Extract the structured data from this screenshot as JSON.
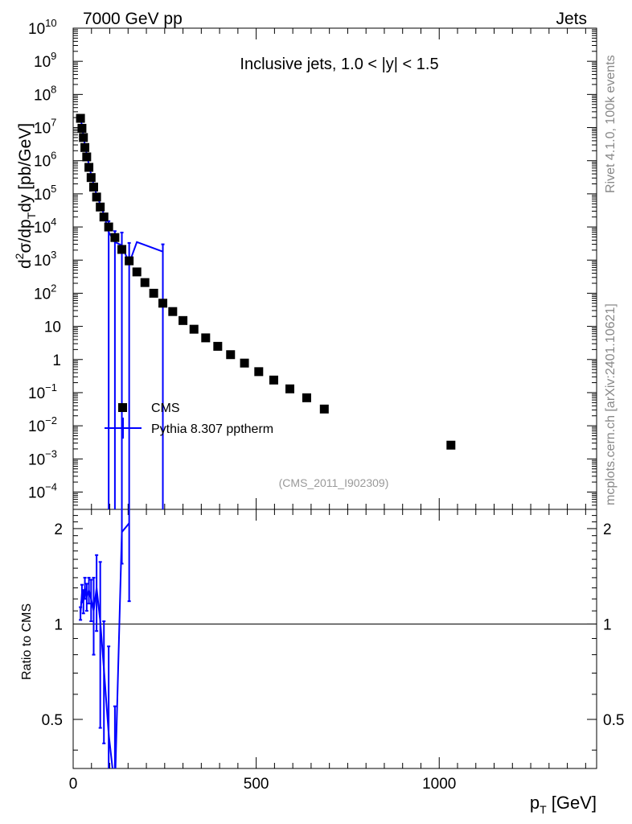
{
  "header": {
    "left": "7000 GeV pp",
    "right": "Jets"
  },
  "side": {
    "top": "Rivet 4.1.0,  100k events",
    "bottom": "mcplots.cern.ch [arXiv:2401.10621]"
  },
  "chart_data": [
    {
      "type": "scatter",
      "title": "Inclusive jets, 1.0 < |y| < 1.5",
      "ylabel": "d²σ/dp_T dy [pb/GeV]",
      "ylabel_parts": {
        "main": "d",
        "sup2": "2",
        "mid": "σ/dp",
        "sub": "T",
        "end": "dy [pb/GeV]"
      },
      "analysis": "(CMS_2011_I902309)",
      "xlim": [
        0,
        1430
      ],
      "ylim": [
        3e-05,
        10000000000
      ],
      "log_y": true,
      "legend_position": "lower-left",
      "y_ticks": [
        {
          "v": 10000000000.0,
          "m": "10",
          "e": "10"
        },
        {
          "v": 1000000000.0,
          "m": "10",
          "e": "9"
        },
        {
          "v": 100000000.0,
          "m": "10",
          "e": "8"
        },
        {
          "v": 10000000.0,
          "m": "10",
          "e": "7"
        },
        {
          "v": 1000000.0,
          "m": "10",
          "e": "6"
        },
        {
          "v": 100000.0,
          "m": "10",
          "e": "5"
        },
        {
          "v": 10000.0,
          "m": "10",
          "e": "4"
        },
        {
          "v": 1000.0,
          "m": "10",
          "e": "3"
        },
        {
          "v": 100.0,
          "m": "10",
          "e": "2"
        },
        {
          "v": 10,
          "m": "10",
          "e": ""
        },
        {
          "v": 1,
          "m": "1",
          "e": ""
        },
        {
          "v": 0.1,
          "m": "10",
          "e": "−1"
        },
        {
          "v": 0.01,
          "m": "10",
          "e": "−2"
        },
        {
          "v": 0.001,
          "m": "10",
          "e": "−3"
        },
        {
          "v": 0.0001,
          "m": "10",
          "e": "−4"
        }
      ],
      "series": [
        {
          "name": "CMS",
          "color": "#000000",
          "x": [
            20,
            24,
            28,
            32,
            37,
            43,
            49,
            56,
            64,
            74,
            84,
            97,
            114,
            133,
            153,
            174,
            196,
            220,
            245,
            272,
            300,
            330,
            362,
            395,
            430,
            468,
            507,
            548,
            592,
            638,
            686,
            1032
          ],
          "y": [
            19000000,
            9500000,
            5000000,
            2500000,
            1300000,
            630000,
            310000,
            160000,
            80000,
            40000,
            20000,
            10000,
            4800,
            2100,
            950,
            440,
            210,
            100,
            50,
            28,
            15,
            8.2,
            4.5,
            2.5,
            1.4,
            0.78,
            0.43,
            0.24,
            0.13,
            0.07,
            0.032,
            0.0026
          ]
        },
        {
          "name": "Pythia 8.307 pptherm",
          "color": "#0000ff",
          "x": [
            20,
            24,
            28,
            32,
            37,
            43,
            49,
            56,
            64,
            74,
            84,
            97,
            114,
            133,
            153,
            174,
            245
          ],
          "y": [
            21000000,
            11000000,
            5800000,
            3000000,
            1600000,
            760000,
            380000,
            190000,
            95000,
            48000,
            24000,
            7000,
            3500,
            2800,
            800,
            3500,
            1800
          ],
          "err_up": [
            0,
            0,
            0,
            0,
            0,
            0,
            0,
            0,
            0,
            0,
            0,
            8000,
            4000,
            4000,
            2500,
            0,
            1200
          ],
          "err_down_to_floor": [
            false,
            false,
            false,
            false,
            false,
            false,
            false,
            false,
            false,
            false,
            false,
            false,
            true,
            false,
            true,
            false,
            true
          ]
        }
      ]
    },
    {
      "type": "line",
      "ylabel": "Ratio to CMS",
      "xlabel": "p_T [GeV]",
      "xlabel_parts": {
        "main": "p",
        "sub": "T",
        "end": " [GeV]"
      },
      "xlim": [
        0,
        1430
      ],
      "ylim": [
        0.35,
        2.3
      ],
      "log_y": true,
      "reference": 1.0,
      "x_ticks": [
        0,
        500,
        1000
      ],
      "y_ticks": [
        0.5,
        1,
        2
      ],
      "series": [
        {
          "name": "Pythia 8.307 pptherm",
          "color": "#0000ff",
          "x": [
            20,
            24,
            28,
            32,
            37,
            43,
            49,
            56,
            64,
            74,
            84,
            97,
            114,
            133,
            153
          ],
          "y": [
            1.08,
            1.25,
            1.18,
            1.3,
            1.22,
            1.28,
            1.2,
            1.1,
            1.3,
            1.02,
            0.72,
            0.45,
            0.3,
            1.95,
            2.08
          ],
          "err": [
            0.05,
            0.08,
            0.1,
            0.1,
            0.12,
            0.12,
            0.18,
            0.3,
            0.35,
            0.55,
            0.3,
            0.4,
            0.25,
            0.4,
            0.9
          ]
        }
      ]
    }
  ]
}
